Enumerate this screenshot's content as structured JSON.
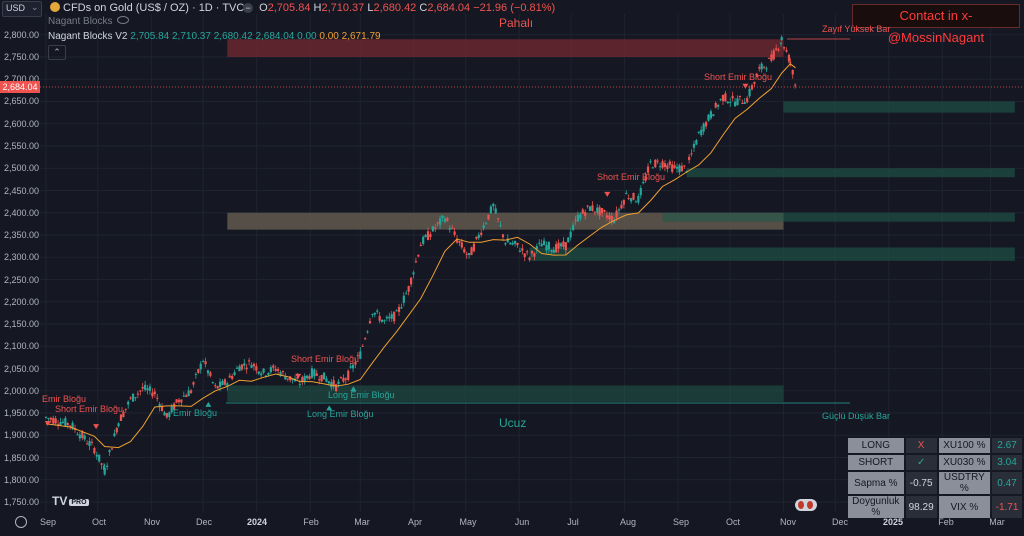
{
  "header": {
    "currency": "USD",
    "symbol_title": "CFDs on Gold (US$ / OZ) · 1D · TVC",
    "ohlc": {
      "o_label": "O",
      "o": "2,705.84",
      "h_label": "H",
      "h": "2,710.37",
      "l_label": "L",
      "l": "2,680.42",
      "c_label": "C",
      "c": "2,684.04",
      "change": "−21.96 (−0.81%)"
    },
    "indicator_1": "Nagant Blocks",
    "indicator_2_name": "Nagant Blocks V2",
    "indicator_2_values": [
      "2,705.84",
      "2,710.37",
      "2,680.42",
      "2,684.04",
      "0.00",
      "0.00"
    ],
    "indicator_2_ma": "2,671.79"
  },
  "contact": "Contact in x-@MossinNagant",
  "zones": {
    "premium": "Pahalı",
    "discount": "Ucuz",
    "weak_high": "Zayıf Yüksek Bar",
    "strong_low": "Güçlü Düşük Bar"
  },
  "block_labels": {
    "short": "Short Emir Bloğu",
    "long": "Long Emir Bloğu",
    "emir": "Emir Bloğu",
    "short_edge": "Emir Bloğu"
  },
  "price_tag": "2,684.04",
  "colors": {
    "up": "#26a69a",
    "down": "#ef5350",
    "ma": "#f0a030",
    "premium": "#7a2a30",
    "discount": "#1f5a4a",
    "neutral": "#6b6256"
  },
  "chart_data": {
    "type": "line",
    "title": "CFDs on Gold (US$ / OZ)",
    "ylabel": "USD",
    "ylim": [
      1725,
      2825
    ],
    "y_ticks": [
      "2,800.00",
      "2,750.00",
      "2,700.00",
      "2,650.00",
      "2,600.00",
      "2,550.00",
      "2,500.00",
      "2,450.00",
      "2,400.00",
      "2,350.00",
      "2,300.00",
      "2,250.00",
      "2,200.00",
      "2,150.00",
      "2,100.00",
      "2,050.00",
      "2,000.00",
      "1,950.00",
      "1,900.00",
      "1,850.00",
      "1,800.00",
      "1,750.00"
    ],
    "y_tick_values": [
      2800,
      2750,
      2700,
      2650,
      2600,
      2550,
      2500,
      2450,
      2400,
      2350,
      2300,
      2250,
      2200,
      2150,
      2100,
      2050,
      2000,
      1950,
      1900,
      1850,
      1800,
      1750
    ],
    "x_ticks": [
      "Sep",
      "Oct",
      "Nov",
      "Dec",
      "2024",
      "Feb",
      "Mar",
      "Apr",
      "May",
      "Jun",
      "Jul",
      "Aug",
      "Sep",
      "Oct",
      "Nov",
      "Dec",
      "2025",
      "Feb",
      "Mar"
    ],
    "x_tick_dates": [
      "2023-09-01",
      "2023-10-01",
      "2023-11-01",
      "2023-12-01",
      "2024-01-01",
      "2024-02-01",
      "2024-03-01",
      "2024-04-01",
      "2024-05-01",
      "2024-06-01",
      "2024-07-01",
      "2024-08-01",
      "2024-09-01",
      "2024-10-01",
      "2024-11-01",
      "2024-12-01",
      "2025-01-01",
      "2025-02-01",
      "2025-03-01"
    ],
    "series": [
      {
        "values": [
          [
            "2023-09-01",
            1940
          ],
          [
            "2023-09-15",
            1925
          ],
          [
            "2023-09-29",
            1870
          ],
          [
            "2023-10-05",
            1820
          ],
          [
            "2023-10-13",
            1930
          ],
          [
            "2023-10-20",
            1980
          ],
          [
            "2023-10-27",
            2005
          ],
          [
            "2023-11-03",
            1995
          ],
          [
            "2023-11-10",
            1940
          ],
          [
            "2023-11-17",
            1980
          ],
          [
            "2023-11-24",
            2000
          ],
          [
            "2023-12-01",
            2070
          ],
          [
            "2023-12-08",
            2005
          ],
          [
            "2023-12-15",
            2020
          ],
          [
            "2023-12-22",
            2055
          ],
          [
            "2023-12-29",
            2062
          ],
          [
            "2024-01-05",
            2040
          ],
          [
            "2024-01-12",
            2050
          ],
          [
            "2024-01-19",
            2030
          ],
          [
            "2024-01-26",
            2018
          ],
          [
            "2024-02-02",
            2040
          ],
          [
            "2024-02-09",
            2030
          ],
          [
            "2024-02-16",
            2010
          ],
          [
            "2024-02-23",
            2035
          ],
          [
            "2024-03-01",
            2082
          ],
          [
            "2024-03-08",
            2180
          ],
          [
            "2024-03-15",
            2155
          ],
          [
            "2024-03-22",
            2170
          ],
          [
            "2024-03-29",
            2230
          ],
          [
            "2024-04-05",
            2330
          ],
          [
            "2024-04-12",
            2360
          ],
          [
            "2024-04-19",
            2390
          ],
          [
            "2024-04-26",
            2340
          ],
          [
            "2024-05-03",
            2300
          ],
          [
            "2024-05-10",
            2360
          ],
          [
            "2024-05-17",
            2415
          ],
          [
            "2024-05-24",
            2335
          ],
          [
            "2024-05-31",
            2325
          ],
          [
            "2024-06-07",
            2300
          ],
          [
            "2024-06-14",
            2330
          ],
          [
            "2024-06-21",
            2320
          ],
          [
            "2024-06-28",
            2326
          ],
          [
            "2024-07-05",
            2390
          ],
          [
            "2024-07-12",
            2412
          ],
          [
            "2024-07-19",
            2400
          ],
          [
            "2024-07-26",
            2385
          ],
          [
            "2024-08-02",
            2440
          ],
          [
            "2024-08-09",
            2430
          ],
          [
            "2024-08-16",
            2510
          ],
          [
            "2024-08-23",
            2512
          ],
          [
            "2024-08-30",
            2500
          ],
          [
            "2024-09-06",
            2500
          ],
          [
            "2024-09-13",
            2575
          ],
          [
            "2024-09-20",
            2620
          ],
          [
            "2024-09-27",
            2660
          ],
          [
            "2024-10-04",
            2650
          ],
          [
            "2024-10-11",
            2656
          ],
          [
            "2024-10-18",
            2720
          ],
          [
            "2024-10-25",
            2745
          ],
          [
            "2024-10-31",
            2790
          ],
          [
            "2024-11-05",
            2740
          ],
          [
            "2024-11-08",
            2684
          ]
        ]
      }
    ]
  },
  "signal_table": {
    "rows": [
      {
        "label": "LONG",
        "mark": "X",
        "market": "XU100 %",
        "value": "2.67"
      },
      {
        "label": "SHORT",
        "mark": "✓",
        "market": "XU030 %",
        "value": "3.04"
      },
      {
        "label": "Sapma %",
        "mark": "-0.75",
        "market": "USDTRY %",
        "value": "0.47"
      },
      {
        "label": "Doygunluk %",
        "mark": "98.29",
        "market": "VIX %",
        "value": "-1.71"
      }
    ]
  }
}
